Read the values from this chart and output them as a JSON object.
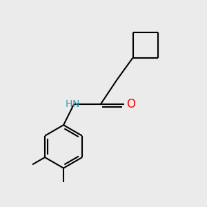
{
  "background_color": "#ebebeb",
  "line_color": "#000000",
  "bond_width": 1.5,
  "atom_colors": {
    "N": "#3399aa",
    "O": "#ff0000",
    "C": "#000000"
  },
  "font_size_nh": 10,
  "font_size_o": 12,
  "figsize": [
    3.0,
    3.0
  ],
  "dpi": 100
}
